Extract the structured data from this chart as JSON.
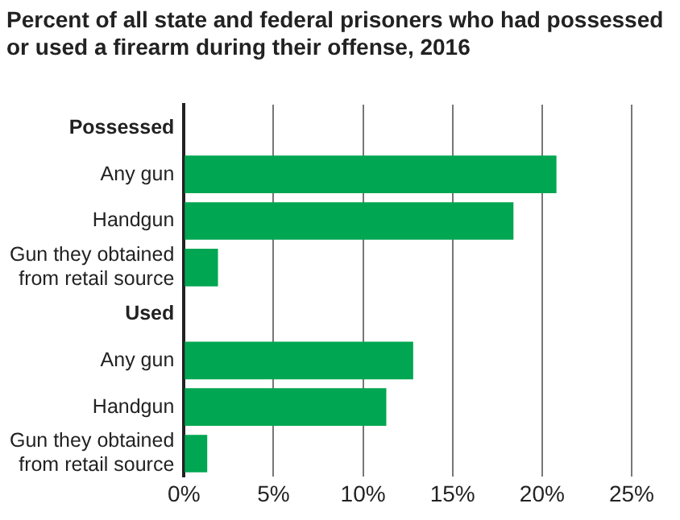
{
  "chart_data": {
    "type": "bar",
    "orientation": "horizontal",
    "title": "Percent of all state and federal prisoners who had possessed or used a firearm during their offense, 2016",
    "categories": [
      "Possessed",
      "Any gun",
      "Handgun",
      "Gun they obtained from retail source",
      "Used",
      "Any gun",
      "Handgun",
      "Gun they obtained from retail source"
    ],
    "values": [
      null,
      20.8,
      18.4,
      1.9,
      null,
      12.8,
      11.3,
      1.3
    ],
    "color": "#00a651",
    "xlim": [
      0,
      25
    ],
    "xticks": [
      {
        "value": 0,
        "label": "0%"
      },
      {
        "value": 5,
        "label": "5%"
      },
      {
        "value": 10,
        "label": "10%"
      },
      {
        "value": 15,
        "label": "15%"
      },
      {
        "value": 20,
        "label": "20%"
      },
      {
        "value": 25,
        "label": "25%"
      }
    ],
    "grid": "x"
  }
}
